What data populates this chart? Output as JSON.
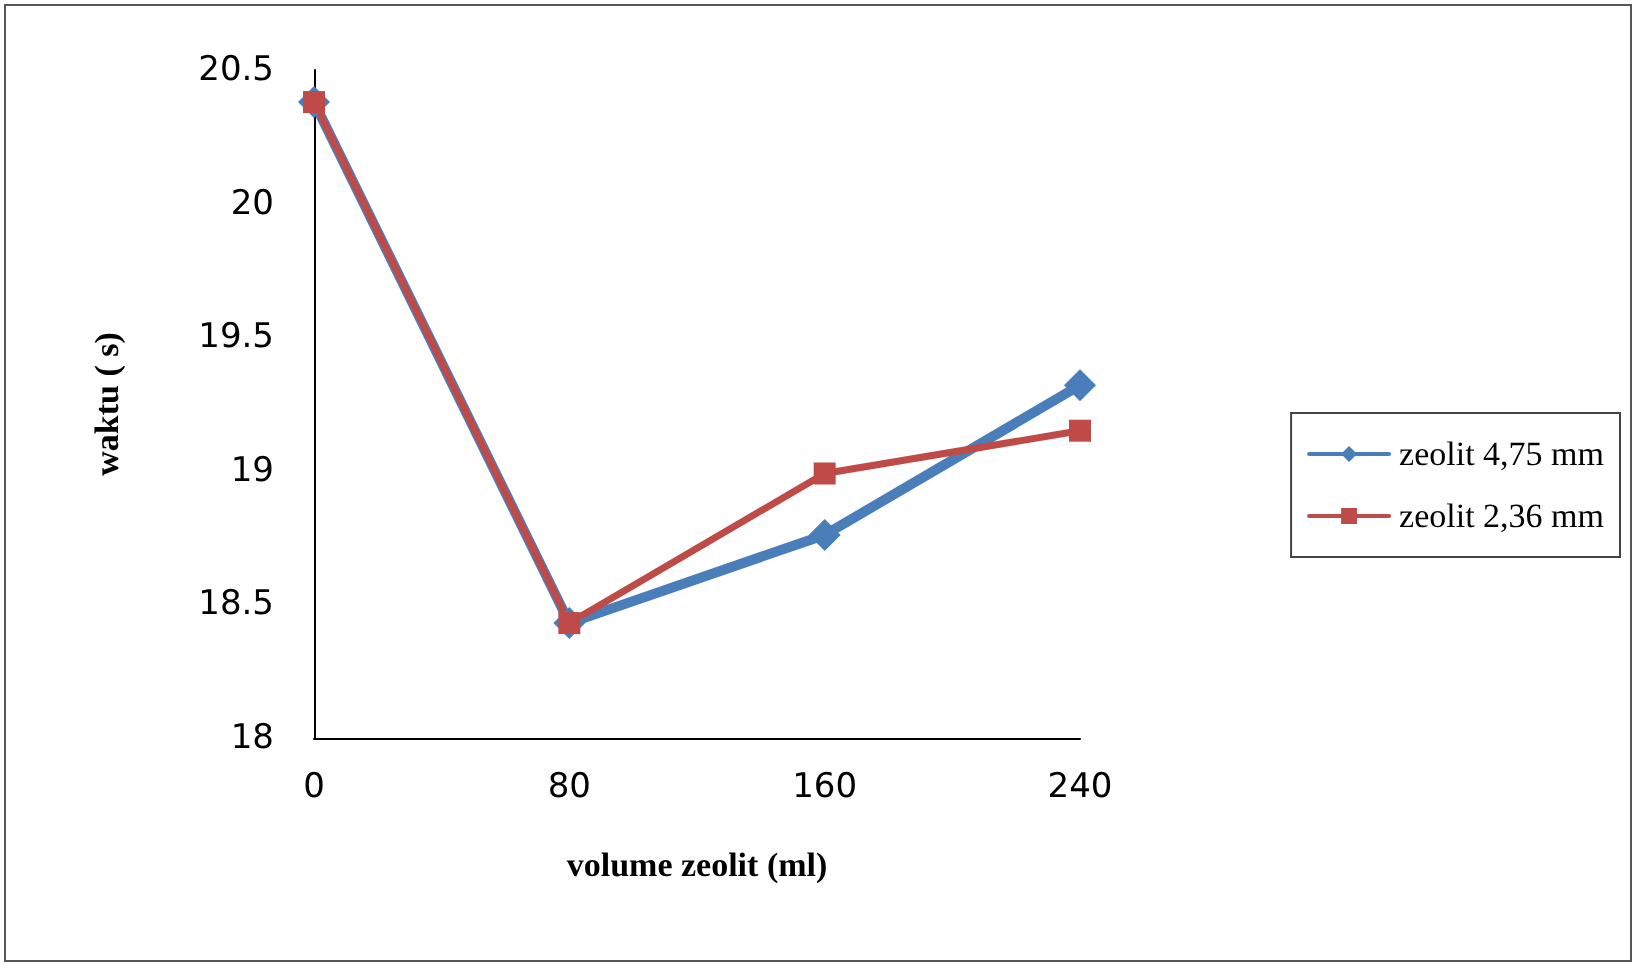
{
  "chart_data": {
    "type": "line",
    "xlabel": "volume zeolit (ml)",
    "ylabel": "waktu ( s)",
    "categories": [
      "0",
      "80",
      "160",
      "240"
    ],
    "series": [
      {
        "name": "zeolit 4,75 mm",
        "color": "#4a7ebb",
        "marker": "diamond",
        "values": [
          20.38,
          18.43,
          18.76,
          19.32
        ]
      },
      {
        "name": "zeolit 2,36 mm",
        "color": "#be4b48",
        "marker": "square",
        "values": [
          20.38,
          18.43,
          18.99,
          19.15
        ]
      }
    ],
    "ylim": [
      18,
      20.5
    ],
    "yticks": [
      18,
      18.5,
      19,
      19.5,
      20,
      20.5
    ],
    "grid": false,
    "legend": "right",
    "line_style": "solid"
  }
}
